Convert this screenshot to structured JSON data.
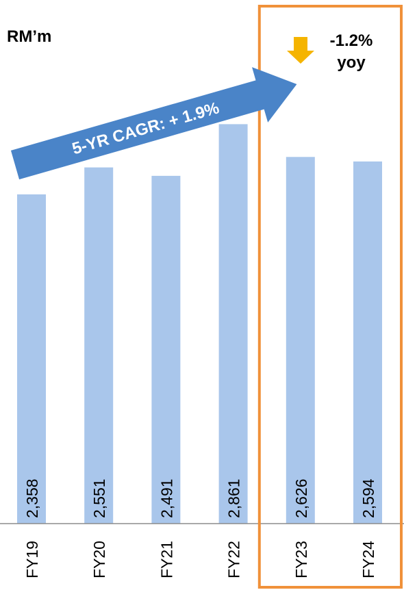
{
  "unit_label": "RM’m",
  "callout": {
    "change": "-1.2%",
    "change_basis": "yoy",
    "cagr": "5-YR CAGR: + 1.9%"
  },
  "colors": {
    "bar": "#a9c6eb",
    "highlight_box": "#f0913a",
    "arrow": "#4a84c8",
    "down_arrow": "#f5b400",
    "axis": "#8c8c8c"
  },
  "chart_data": {
    "type": "bar",
    "categories": [
      "FY19",
      "FY20",
      "FY21",
      "FY22",
      "FY23",
      "FY24"
    ],
    "values": [
      2358,
      2551,
      2491,
      2861,
      2626,
      2594
    ],
    "value_labels": [
      "2,358",
      "2,551",
      "2,491",
      "2,861",
      "2,626",
      "2,594"
    ],
    "highlighted_categories": [
      "FY23",
      "FY24"
    ],
    "ylabel": "RM’m",
    "grid": false
  }
}
